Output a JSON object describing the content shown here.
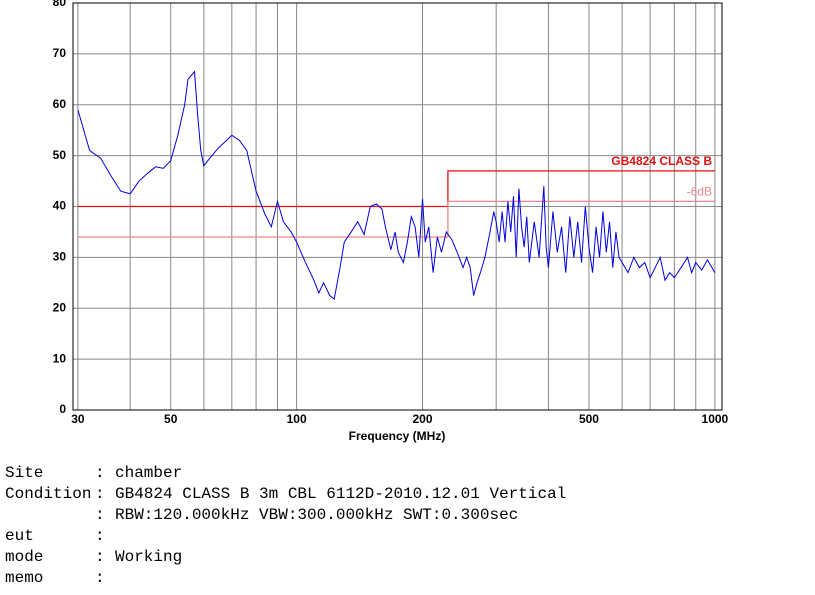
{
  "chart_data": {
    "type": "line",
    "log_x": true,
    "grid": true,
    "x_label": "Frequency (MHz)",
    "xlim": [
      29.2,
      1040
    ],
    "ylim": [
      0,
      80
    ],
    "xticks": [
      30,
      50,
      100,
      200,
      500,
      1000
    ],
    "xgrid": [
      30,
      40,
      50,
      60,
      70,
      80,
      90,
      100,
      200,
      300,
      400,
      500,
      600,
      700,
      800,
      900,
      1000
    ],
    "yticks": [
      0,
      10,
      20,
      30,
      40,
      50,
      60,
      70,
      80
    ],
    "series": [
      {
        "name": "GB4824 CLASS B",
        "color": "#e01010",
        "x": [
          30,
          230,
          230,
          1000
        ],
        "values": [
          40,
          40,
          47,
          47
        ]
      },
      {
        "name": "-6dB",
        "color": "#f08888",
        "x": [
          30,
          230,
          230,
          1000
        ],
        "values": [
          34,
          34,
          41,
          41
        ]
      },
      {
        "color": "#0000dd",
        "x": [
          30,
          32,
          34,
          36,
          38,
          40,
          42,
          44,
          46,
          48,
          50,
          52,
          54,
          55,
          57,
          58,
          59,
          60,
          62,
          65,
          68,
          70,
          73,
          76,
          80,
          84,
          87,
          90,
          93,
          97,
          100,
          105,
          110,
          113,
          116,
          120,
          123,
          127,
          130,
          135,
          140,
          145,
          150,
          155,
          160,
          163,
          168,
          172,
          175,
          180,
          184,
          188,
          192,
          196,
          200,
          203,
          207,
          212,
          217,
          222,
          228,
          235,
          242,
          250,
          255,
          260,
          265,
          270,
          275,
          282,
          290,
          296,
          300,
          305,
          310,
          315,
          320,
          325,
          330,
          335,
          340,
          345,
          350,
          355,
          360,
          370,
          380,
          390,
          395,
          400,
          410,
          420,
          430,
          440,
          450,
          460,
          470,
          480,
          490,
          500,
          510,
          520,
          530,
          540,
          550,
          560,
          570,
          580,
          590,
          600,
          620,
          640,
          660,
          680,
          700,
          720,
          740,
          760,
          780,
          800,
          830,
          860,
          880,
          900,
          930,
          960,
          1000
        ],
        "values": [
          59,
          51,
          49.5,
          46,
          43,
          42.5,
          45,
          46.5,
          47.8,
          47.5,
          49,
          54,
          60,
          65,
          66.5,
          58,
          51,
          48,
          49.5,
          51.5,
          53,
          54,
          53,
          51,
          43,
          38.5,
          36,
          41,
          37,
          35,
          33,
          29,
          25.5,
          23,
          25,
          22.5,
          21.8,
          28,
          33,
          35,
          37,
          34.5,
          40,
          40.5,
          39.5,
          36,
          31.5,
          35,
          31,
          29,
          33,
          38,
          36,
          30,
          41.5,
          33,
          36,
          27,
          34,
          31,
          35,
          33.5,
          31,
          28,
          30,
          28,
          22.5,
          25,
          27,
          30,
          35,
          39,
          37,
          33,
          39,
          33,
          41,
          35,
          42,
          30,
          43.5,
          36,
          32,
          38,
          29,
          37,
          30,
          44,
          32,
          28,
          39,
          31,
          36,
          27,
          38,
          30,
          37,
          29,
          40,
          32,
          27,
          36,
          30,
          39,
          31,
          37,
          28,
          35,
          30,
          29,
          27,
          30,
          28,
          29,
          26,
          28,
          30,
          25.5,
          27,
          26,
          28,
          30,
          27,
          29,
          27.5,
          29.5,
          27
        ]
      }
    ]
  },
  "info": {
    "separator": ":",
    "rows": [
      {
        "key": "Site",
        "value": "chamber"
      },
      {
        "key": "Condition",
        "value": "GB4824 CLASS B 3m CBL 6112D-2010.12.01 Vertical"
      },
      {
        "value": "RBW:120.000kHz VBW:300.000kHz SWT:0.300sec"
      },
      {
        "key": "eut"
      },
      {
        "key": "mode",
        "value": "Working"
      },
      {
        "key": "memo"
      }
    ]
  }
}
